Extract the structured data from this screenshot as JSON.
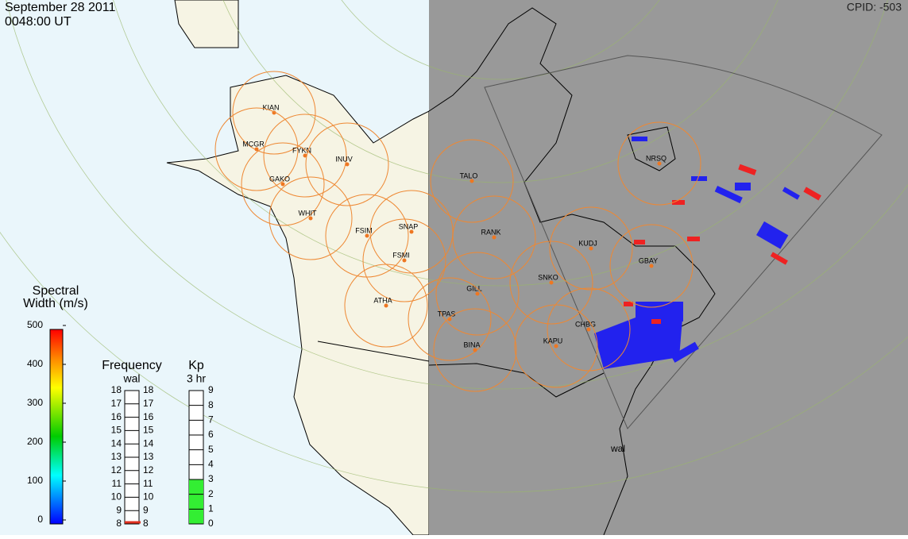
{
  "header": {
    "date": "September 28 2011",
    "time": "0048:00 UT",
    "cpid": "CPID:  -503"
  },
  "colorbar": {
    "title": [
      "Spectral",
      "Width (m/s)"
    ],
    "ticks": [
      0,
      100,
      200,
      300,
      400,
      500
    ]
  },
  "frequency": {
    "title": "Frequency",
    "station": "wal",
    "ticks": [
      8,
      9,
      10,
      11,
      12,
      13,
      14,
      15,
      16,
      17,
      18
    ],
    "value": 8
  },
  "kp": {
    "title": "Kp",
    "subtitle": "3 hr",
    "ticks": [
      0,
      1,
      2,
      3,
      4,
      5,
      6,
      7,
      8,
      9
    ],
    "value": 3
  },
  "radars": [
    "KIAN",
    "MCGR",
    "FYKN",
    "INUV",
    "GAKO",
    "WHIT",
    "FSIM",
    "SNAP",
    "FSMI",
    "TALO",
    "RANK",
    "KUDJ",
    "GBAY",
    "NRSQ",
    "SNKO",
    "GILL",
    "TPAS",
    "ATHA",
    "CHBG",
    "KAPU",
    "BINA"
  ],
  "site_label": "wal"
}
